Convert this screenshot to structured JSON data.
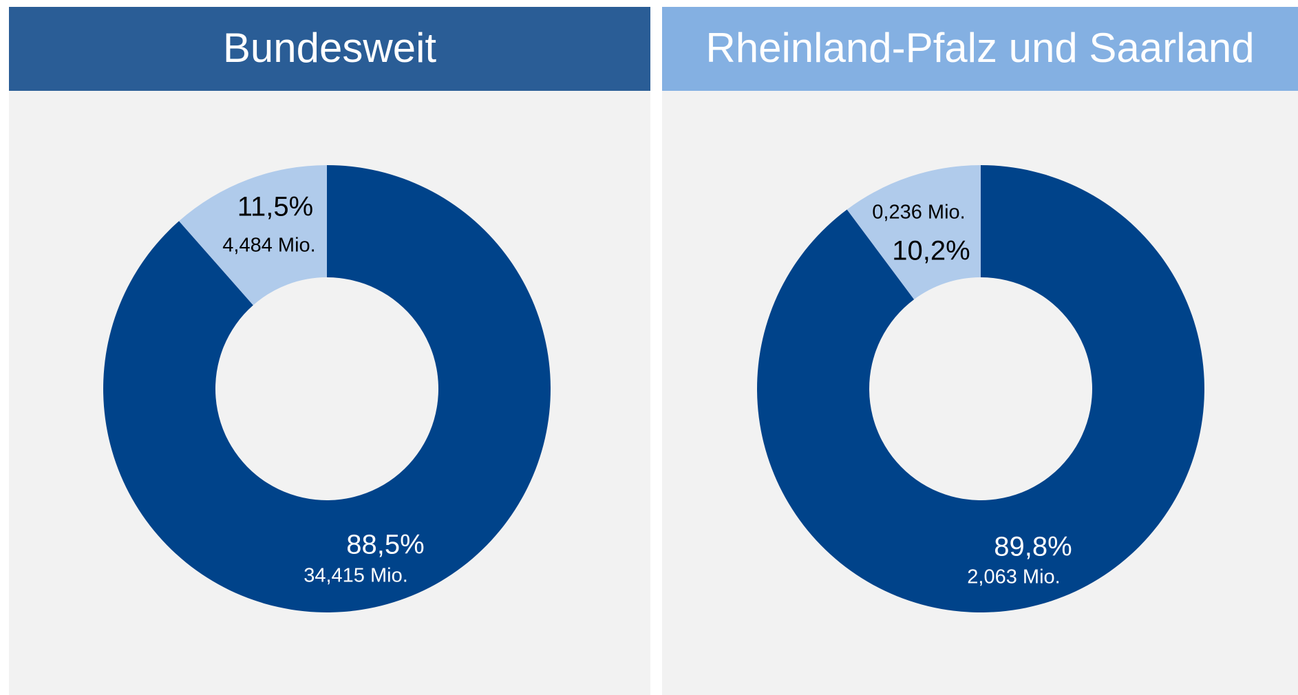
{
  "chart_data": [
    {
      "type": "pie",
      "title": "Bundesweit",
      "header_color": "#2a5d96",
      "values": [
        88.5,
        11.5
      ],
      "value_labels": [
        "88,5%",
        "11,5%"
      ],
      "amounts": [
        34.415,
        4.484
      ],
      "amount_labels": [
        "34,415 Mio.",
        "4,484 Mio."
      ],
      "colors": [
        "#00438a",
        "#b0cbeb"
      ]
    },
    {
      "type": "pie",
      "title": "Rheinland-Pfalz und Saarland",
      "header_color": "#84b0e2",
      "values": [
        89.8,
        10.2
      ],
      "value_labels": [
        "89,8%",
        "10,2%"
      ],
      "amounts": [
        2.063,
        0.236
      ],
      "amount_labels": [
        "2,063 Mio.",
        "0,236 Mio."
      ],
      "colors": [
        "#00438a",
        "#b0cbeb"
      ]
    }
  ]
}
